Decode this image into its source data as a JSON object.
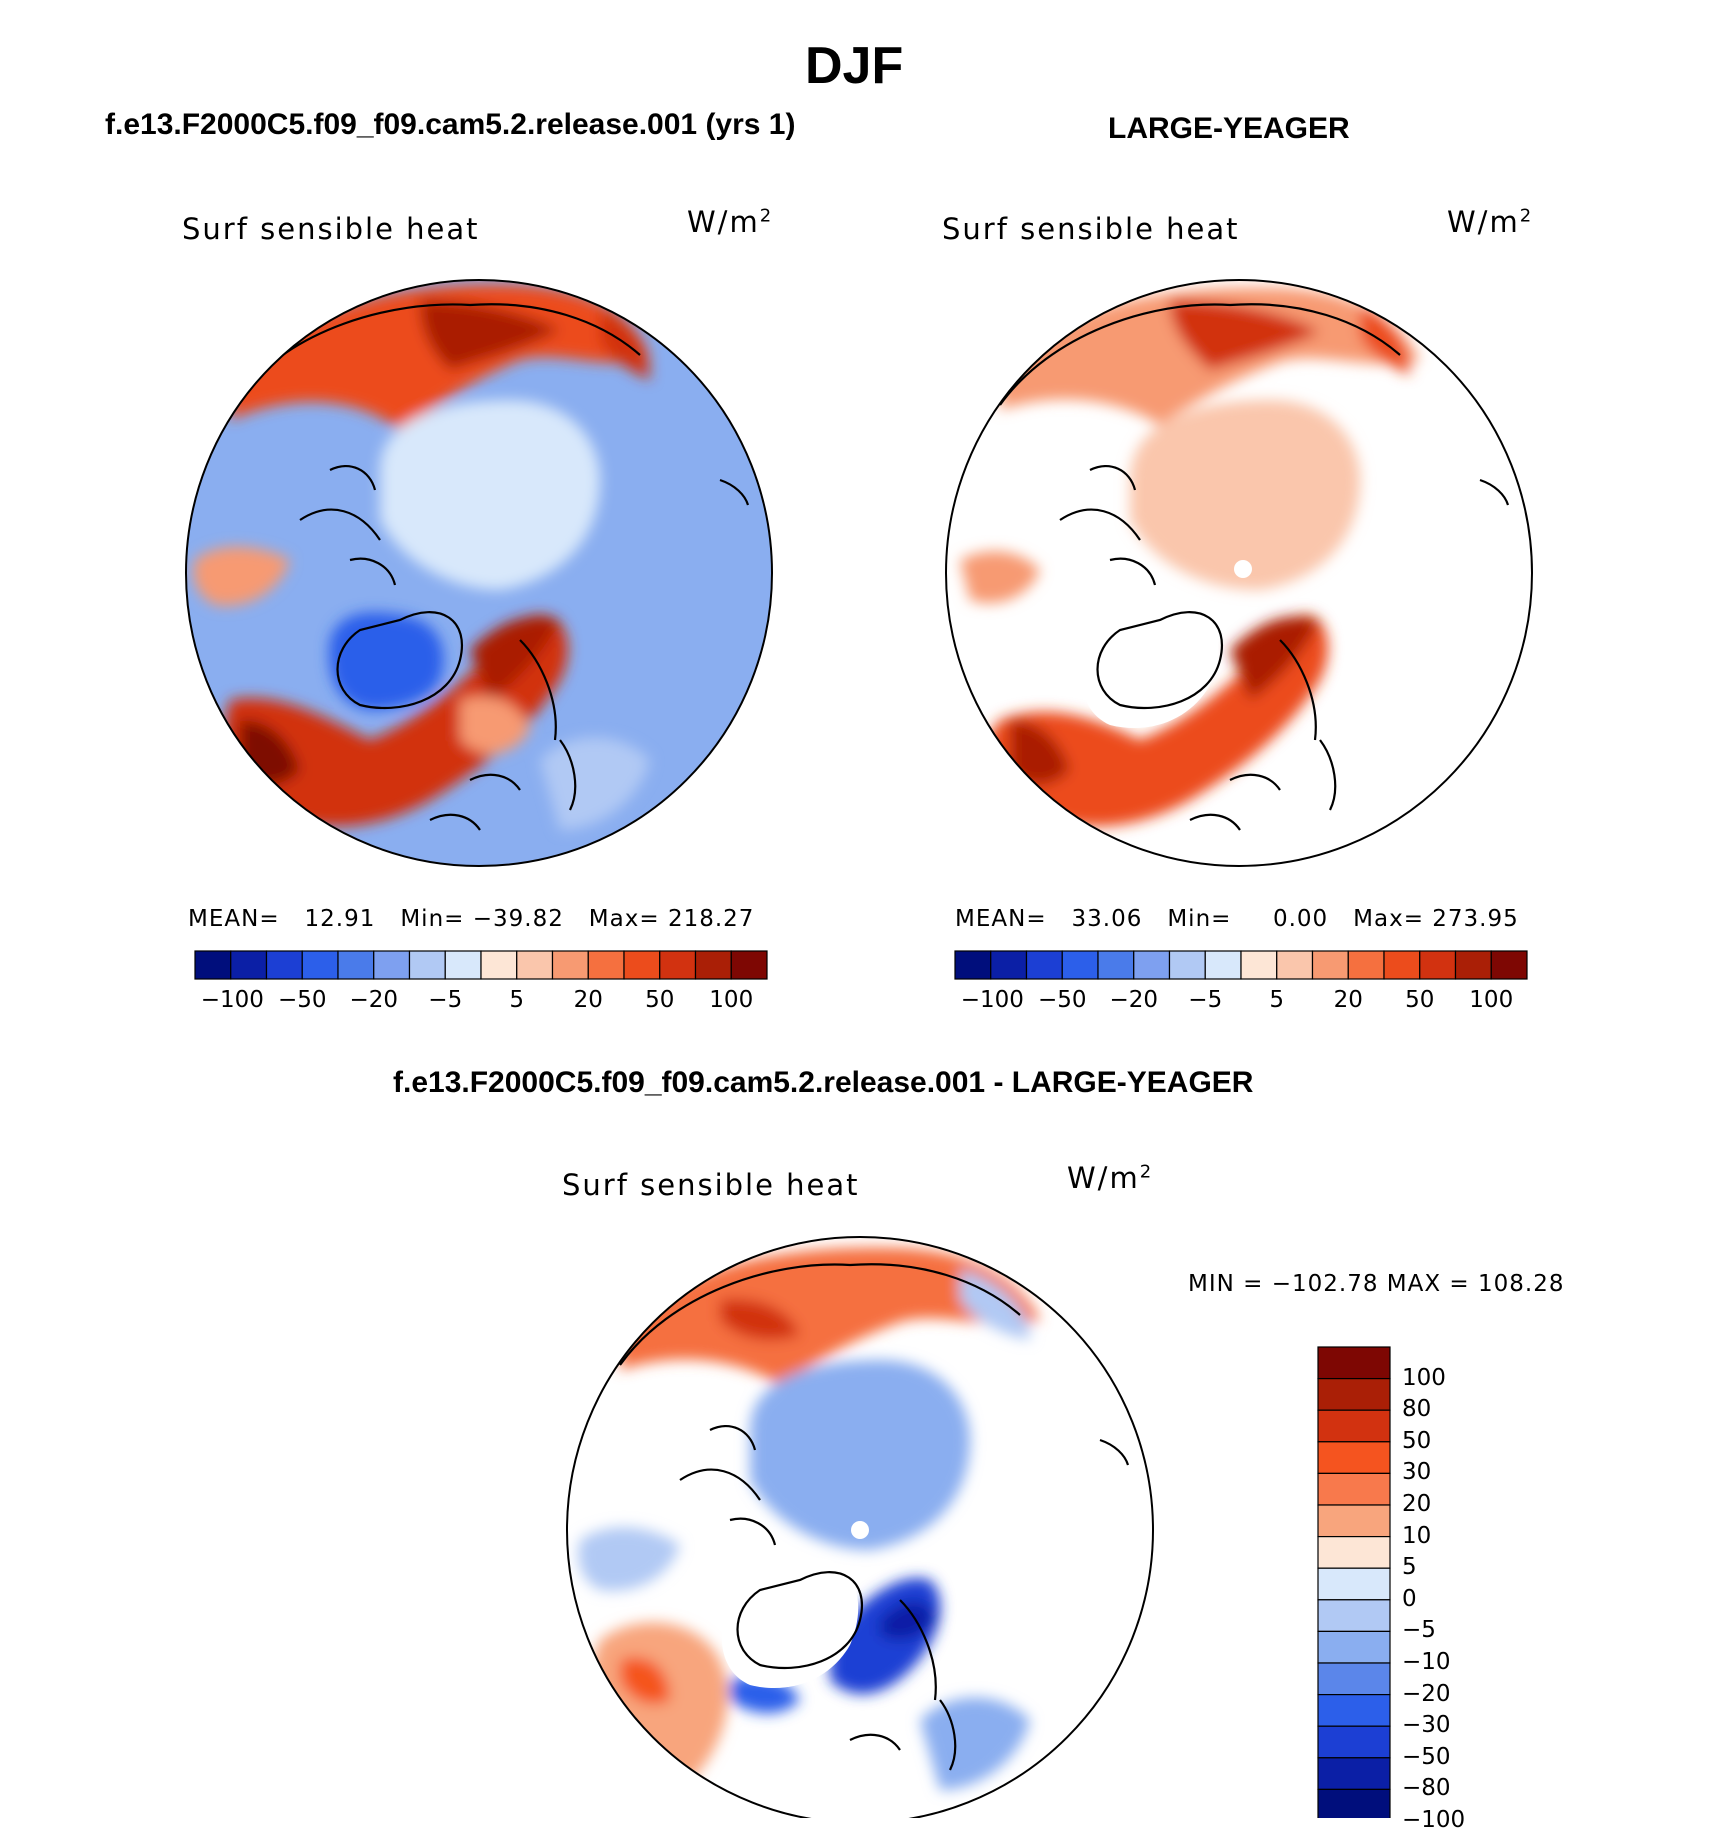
{
  "figure": {
    "title": "DJF",
    "diff_title": "f.e13.F2000C5.f09_f09.cam5.2.release.001 - LARGE-YEAGER"
  },
  "panels": [
    {
      "id": "model",
      "title": "f.e13.F2000C5.f09_f09.cam5.2.release.001 (yrs 1)",
      "variable": "Surf sensible heat",
      "units_base": "W/m",
      "units_exp": "2",
      "stats": {
        "mean_label": "MEAN=",
        "mean": "12.91",
        "min_label": "Min=",
        "min": "−39.82",
        "max_label": "Max=",
        "max": "218.27"
      }
    },
    {
      "id": "obs",
      "title": "LARGE-YEAGER",
      "variable": "Surf sensible heat",
      "units_base": "W/m",
      "units_exp": "2",
      "stats": {
        "mean_label": "MEAN=",
        "mean": "33.06",
        "min_label": "Min=",
        "min": "0.00",
        "max_label": "Max=",
        "max": "273.95"
      }
    },
    {
      "id": "diff",
      "variable": "Surf sensible heat",
      "units_base": "W/m",
      "units_exp": "2",
      "stats_text": "MIN = −102.78 MAX = 108.28"
    }
  ],
  "colorbar_main": {
    "colors": [
      "#000e7c",
      "#0b1fa6",
      "#1c3fd4",
      "#2c5fea",
      "#4a7bea",
      "#7ea0f0",
      "#b1c9f4",
      "#d8e8fb",
      "#fde6d6",
      "#fac6ac",
      "#f79a72",
      "#f5703f",
      "#ec4c1c",
      "#d23210",
      "#aa1f06",
      "#7e0703"
    ],
    "ticks": [
      "−100",
      "−50",
      "−20",
      "−5",
      "5",
      "20",
      "50",
      "100"
    ]
  },
  "colorbar_diff": {
    "colors": [
      "#7e0703",
      "#aa1f06",
      "#d23210",
      "#f5541f",
      "#f8794c",
      "#f8a57d",
      "#fde6d6",
      "#d8e8fb",
      "#b1c9f4",
      "#8aaef0",
      "#5b86ea",
      "#2c5fea",
      "#1c3fd4",
      "#0b1fa6",
      "#000e7c"
    ],
    "ticks": [
      "100",
      "80",
      "50",
      "30",
      "20",
      "10",
      "5",
      "0",
      "−5",
      "−10",
      "−20",
      "−30",
      "−50",
      "−80",
      "−100"
    ]
  }
}
